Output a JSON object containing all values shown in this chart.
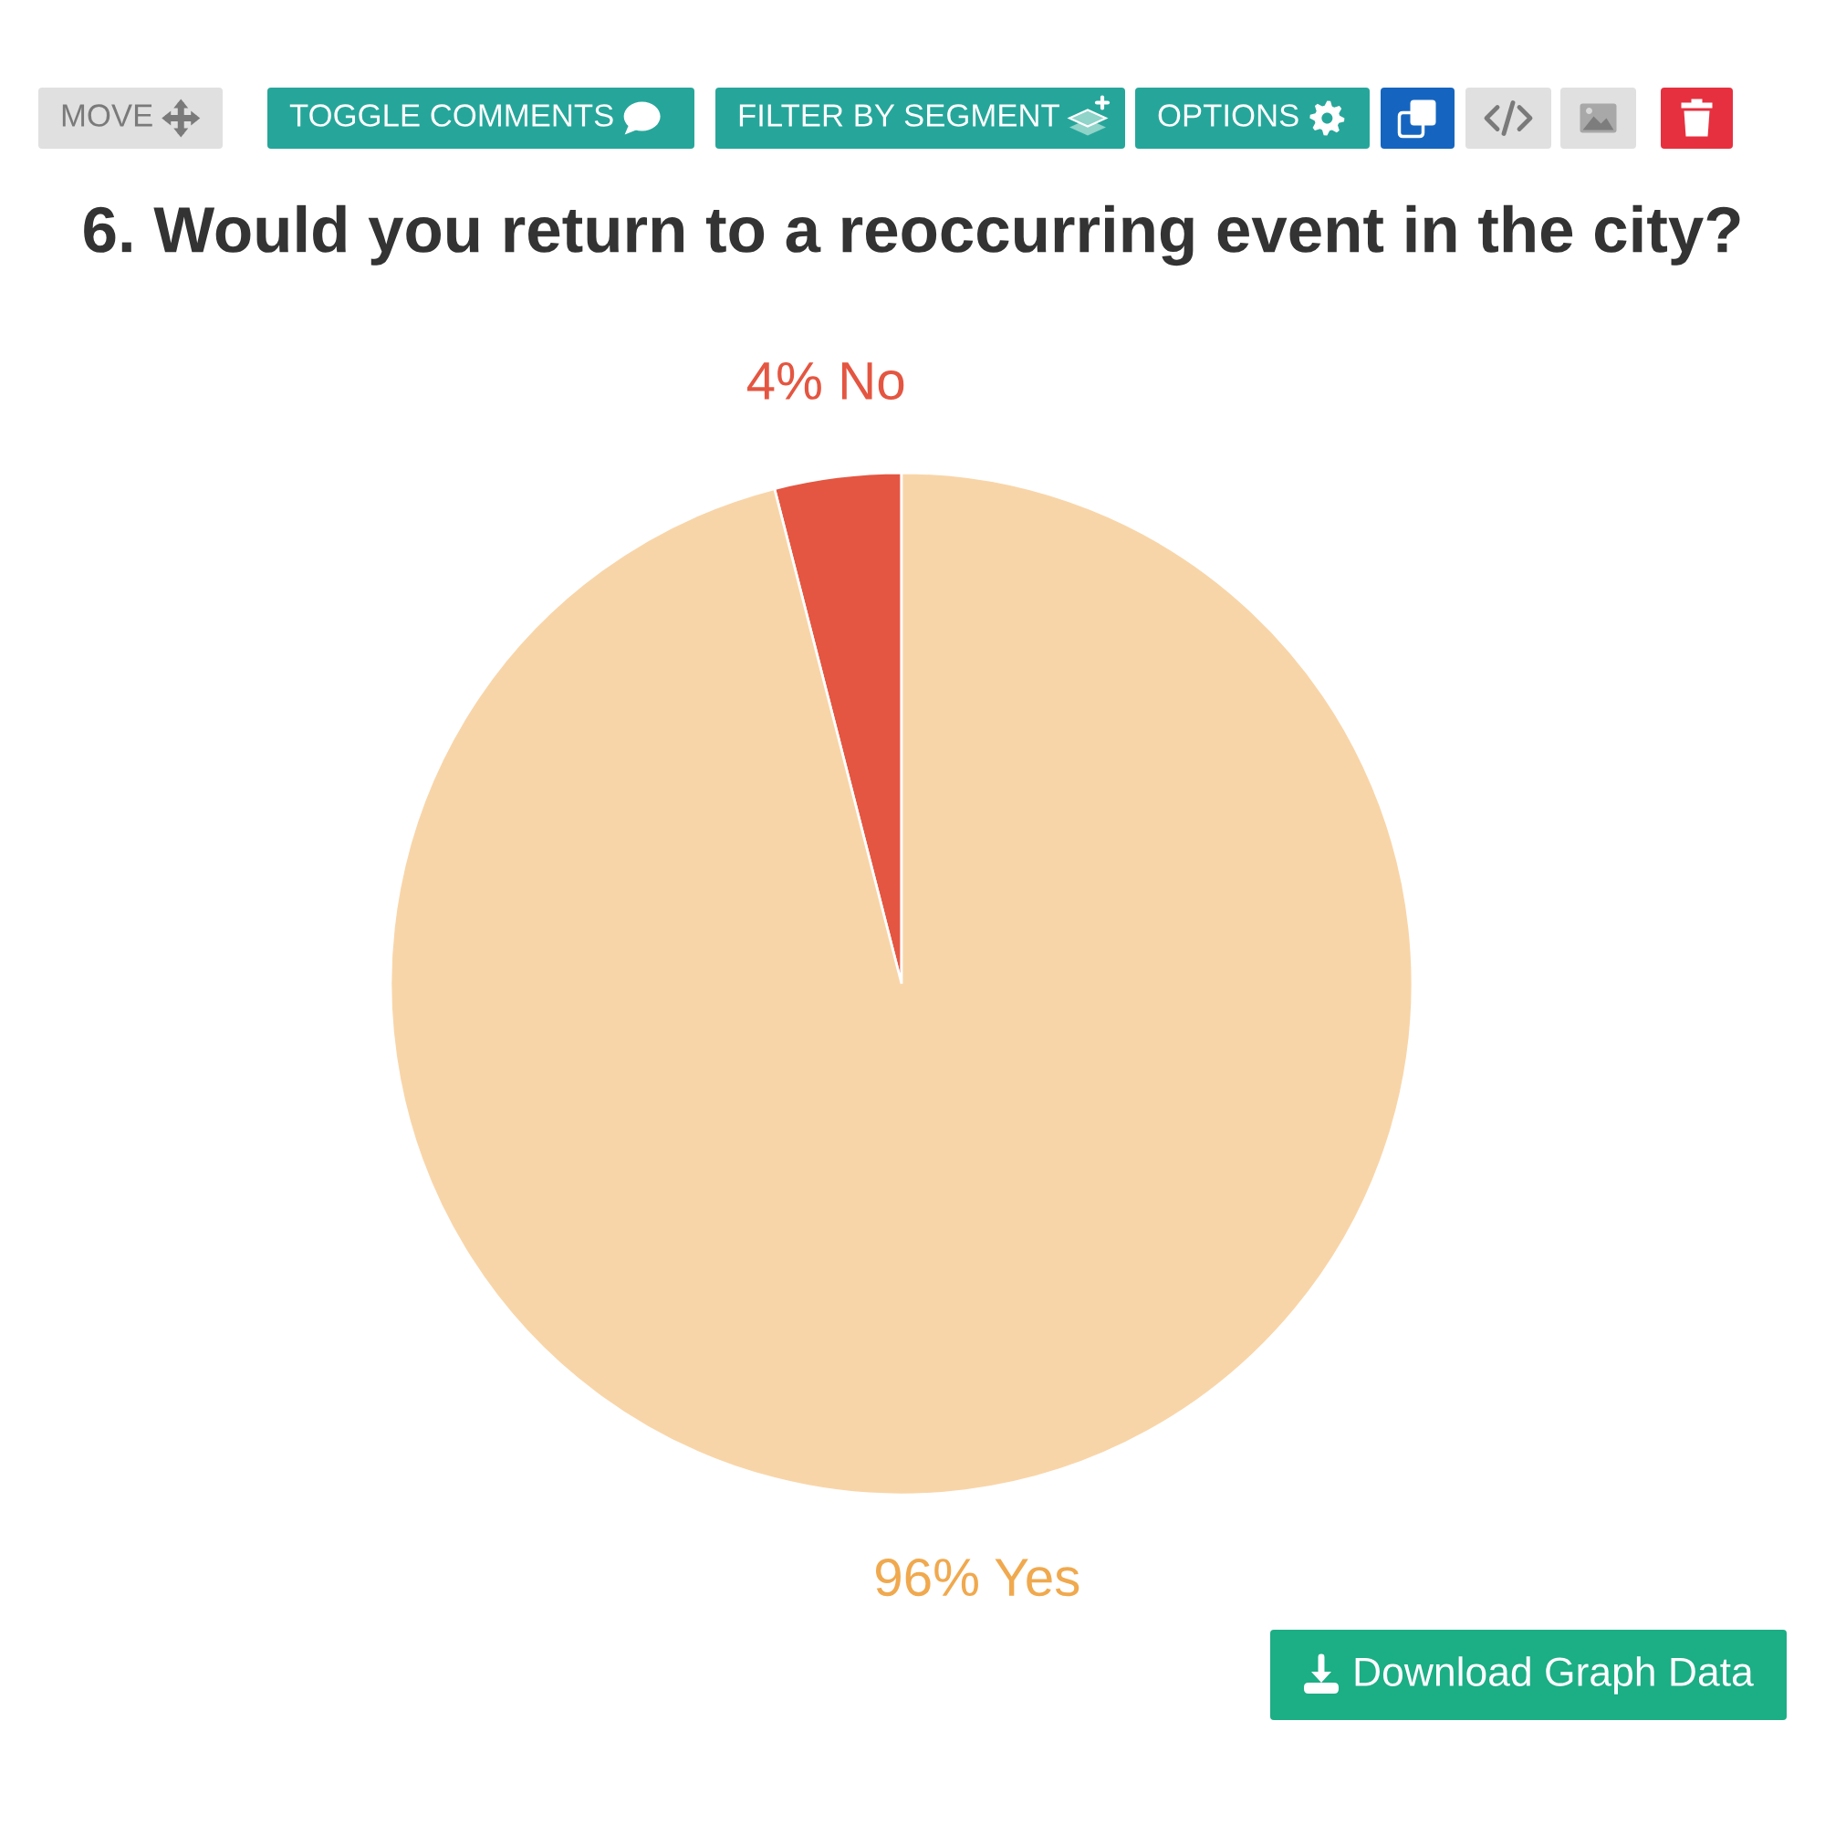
{
  "chart_data": {
    "type": "pie",
    "title": "6. Would you return to a reoccurring event in the city?",
    "categories": [
      "No",
      "Yes"
    ],
    "values": [
      4,
      96
    ],
    "colors": [
      "#e45641",
      "#f8d5a8"
    ],
    "value_labels": [
      "4%",
      "96%"
    ],
    "annotations": [
      "MOVE",
      "TOGGLE COMMENTS",
      "FILTER BY SEGMENT",
      "OPTIONS",
      "Download Graph Data"
    ]
  }
}
